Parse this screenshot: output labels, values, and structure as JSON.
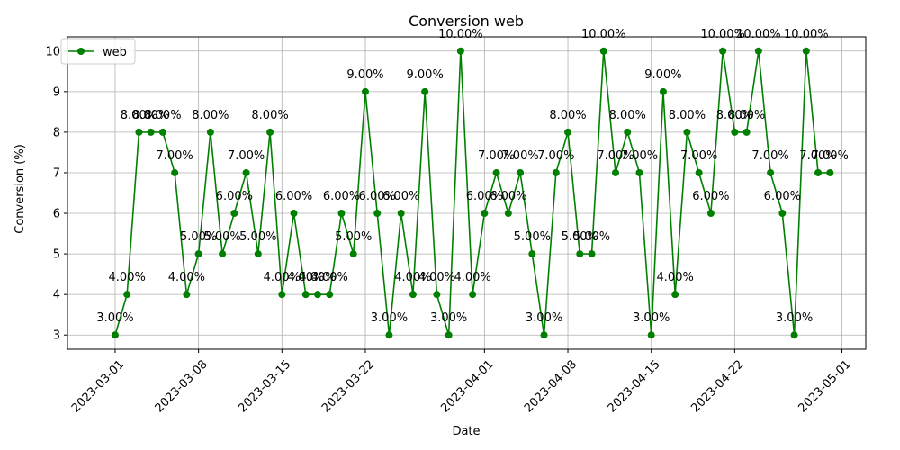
{
  "chart_data": {
    "type": "line",
    "title": "Conversion web",
    "xlabel": "Date",
    "ylabel": "Conversion (%)",
    "x_axis": "date",
    "xlim": [
      "2023-02-25",
      "2023-05-03"
    ],
    "ylim": [
      2.65,
      10.35
    ],
    "x_ticks": [
      "2023-03-01",
      "2023-03-08",
      "2023-03-15",
      "2023-03-22",
      "2023-04-01",
      "2023-04-08",
      "2023-04-15",
      "2023-04-22",
      "2023-05-01"
    ],
    "y_ticks": [
      3,
      4,
      5,
      6,
      7,
      8,
      9,
      10
    ],
    "grid": true,
    "legend_position": "upper-left",
    "colors": {
      "line": "#008000",
      "grid": "#b0b0b0",
      "axis": "#000000"
    },
    "data_label_format": "{value}.00%",
    "x": [
      "2023-03-01",
      "2023-03-02",
      "2023-03-03",
      "2023-03-04",
      "2023-03-05",
      "2023-03-06",
      "2023-03-07",
      "2023-03-08",
      "2023-03-09",
      "2023-03-10",
      "2023-03-11",
      "2023-03-12",
      "2023-03-13",
      "2023-03-14",
      "2023-03-15",
      "2023-03-16",
      "2023-03-17",
      "2023-03-18",
      "2023-03-19",
      "2023-03-20",
      "2023-03-21",
      "2023-03-22",
      "2023-03-23",
      "2023-03-24",
      "2023-03-25",
      "2023-03-26",
      "2023-03-27",
      "2023-03-28",
      "2023-03-29",
      "2023-03-30",
      "2023-03-31",
      "2023-04-01",
      "2023-04-02",
      "2023-04-03",
      "2023-04-04",
      "2023-04-05",
      "2023-04-06",
      "2023-04-07",
      "2023-04-08",
      "2023-04-09",
      "2023-04-10",
      "2023-04-11",
      "2023-04-12",
      "2023-04-13",
      "2023-04-14",
      "2023-04-15",
      "2023-04-16",
      "2023-04-17",
      "2023-04-18",
      "2023-04-19",
      "2023-04-20",
      "2023-04-21",
      "2023-04-22",
      "2023-04-23",
      "2023-04-24",
      "2023-04-25",
      "2023-04-26",
      "2023-04-27",
      "2023-04-28",
      "2023-04-29",
      "2023-04-30"
    ],
    "series": [
      {
        "name": "web",
        "values": [
          3,
          4,
          8,
          8,
          8,
          7,
          4,
          5,
          8,
          5,
          6,
          7,
          5,
          8,
          4,
          6,
          4,
          4,
          4,
          6,
          5,
          9,
          6,
          3,
          6,
          4,
          9,
          4,
          3,
          10,
          4,
          6,
          7,
          6,
          7,
          5,
          3,
          7,
          8,
          5,
          5,
          10,
          7,
          8,
          7,
          3,
          9,
          4,
          8,
          7,
          6,
          10,
          8,
          8,
          10,
          7,
          6,
          3,
          10,
          7,
          7
        ],
        "labels": [
          "3.00%",
          "4.00%",
          "8.00%",
          "8.00%",
          "8.00%",
          "7.00%",
          "4.00%",
          "5.00%",
          "8.00%",
          "5.00%",
          "6.00%",
          "7.00%",
          "5.00%",
          "8.00%",
          "4.00%",
          "6.00%",
          "4.00%",
          "4.00%",
          "4.00%",
          "6.00%",
          "5.00%",
          "9.00%",
          "6.00%",
          "3.00%",
          "6.00%",
          "4.00%",
          "9.00%",
          "4.00%",
          "3.00%",
          "10.00%",
          "4.00%",
          "6.00%",
          "7.00%",
          "6.00%",
          "7.00%",
          "5.00%",
          "3.00%",
          "7.00%",
          "8.00%",
          "5.00%",
          "5.00%",
          "10.00%",
          "7.00%",
          "8.00%",
          "7.00%",
          "3.00%",
          "9.00%",
          "4.00%",
          "8.00%",
          "7.00%",
          "6.00%",
          "10.00%",
          "8.00%",
          "8.00%",
          "10.00%",
          "7.00%",
          "6.00%",
          "3.00%",
          "10.00%",
          "7.00%",
          "7.00%"
        ]
      }
    ]
  }
}
